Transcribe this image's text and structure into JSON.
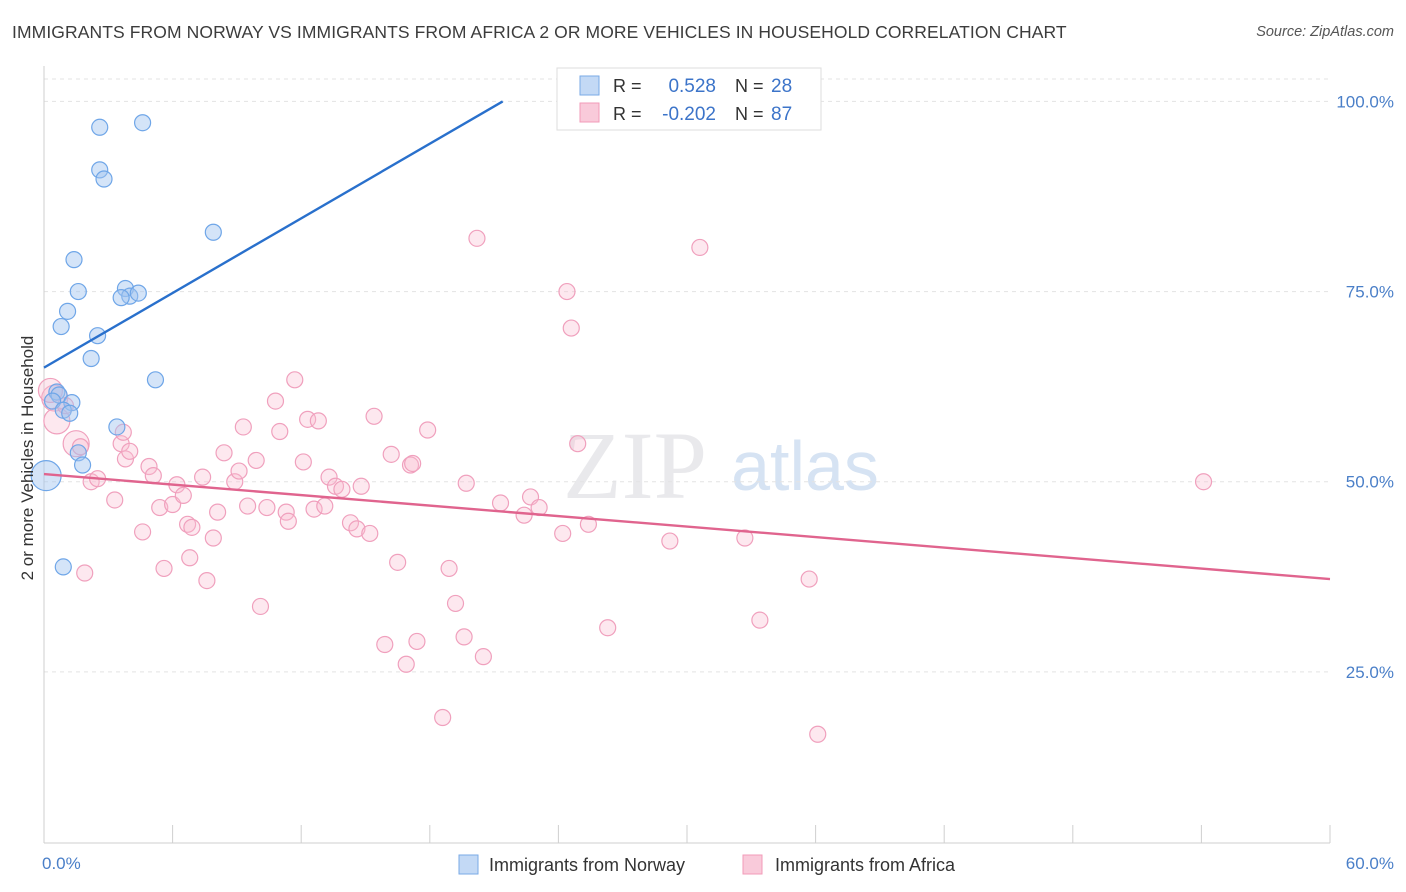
{
  "title": "IMMIGRANTS FROM NORWAY VS IMMIGRANTS FROM AFRICA 2 OR MORE VEHICLES IN HOUSEHOLD CORRELATION CHART",
  "source": "Source: ZipAtlas.com",
  "watermark": {
    "zip": "ZIP",
    "atlas": "atlas"
  },
  "colors": {
    "norway": "#6fa6e8",
    "norway_line": "#2970cc",
    "africa": "#f29bb8",
    "africa_line": "#e0648e",
    "axis_label": "#4a7fc8",
    "grid": "#dddddd"
  },
  "stats": [
    {
      "r_label": "R =",
      "r_value": "0.528",
      "n_label": "N =",
      "n_value": "28",
      "series": "norway"
    },
    {
      "r_label": "R =",
      "r_value": "-0.202",
      "n_label": "N =",
      "n_value": "87",
      "series": "africa"
    }
  ],
  "chart_data": {
    "type": "scatter",
    "title": "IMMIGRANTS FROM NORWAY VS IMMIGRANTS FROM AFRICA 2 OR MORE VEHICLES IN HOUSEHOLD CORRELATION CHART",
    "xlabel": "",
    "ylabel": "2 or more Vehicles in Household",
    "xlim": [
      0,
      60
    ],
    "ylim": [
      2.5,
      104
    ],
    "x_tick_labels": [
      "0.0%",
      "60.0%"
    ],
    "y_ticks": [
      25,
      50,
      75,
      100
    ],
    "y_tick_labels": [
      "25.0%",
      "50.0%",
      "75.0%",
      "100.0%"
    ],
    "grid": true,
    "legend_position": "bottom",
    "series": [
      {
        "name": "Immigrants from Norway",
        "color": "#6fa6e8",
        "trend": {
          "x": [
            0,
            21.4
          ],
          "y": [
            65,
            100
          ]
        },
        "points": [
          [
            0.1,
            50.8
          ],
          [
            0.9,
            38.8
          ],
          [
            2.6,
            96.6
          ],
          [
            2.6,
            91.0
          ],
          [
            2.8,
            89.8
          ],
          [
            4.6,
            97.2
          ],
          [
            7.9,
            82.8
          ],
          [
            1.4,
            79.2
          ],
          [
            1.6,
            75.0
          ],
          [
            3.8,
            75.4
          ],
          [
            4.0,
            74.4
          ],
          [
            3.6,
            74.2
          ],
          [
            4.4,
            74.8
          ],
          [
            1.1,
            72.4
          ],
          [
            0.8,
            70.4
          ],
          [
            2.5,
            69.2
          ],
          [
            2.2,
            66.2
          ],
          [
            5.2,
            63.4
          ],
          [
            0.6,
            61.8
          ],
          [
            0.7,
            61.4
          ],
          [
            0.4,
            60.6
          ],
          [
            1.3,
            60.4
          ],
          [
            0.9,
            59.4
          ],
          [
            1.2,
            59.0
          ],
          [
            3.4,
            57.2
          ],
          [
            1.6,
            53.8
          ],
          [
            1.8,
            52.2
          ],
          [
            26.0,
            100.0
          ]
        ]
      },
      {
        "name": "Immigrants from Africa",
        "color": "#f29bb8",
        "trend": {
          "x": [
            0,
            60
          ],
          "y": [
            51.0,
            37.2
          ]
        },
        "points": [
          [
            0.5,
            61.0
          ],
          [
            0.6,
            58.0
          ],
          [
            1.0,
            60.0
          ],
          [
            1.5,
            55.0
          ],
          [
            1.7,
            54.6
          ],
          [
            3.6,
            55.0
          ],
          [
            2.2,
            50.0
          ],
          [
            2.5,
            50.4
          ],
          [
            1.9,
            38.0
          ],
          [
            3.3,
            47.6
          ],
          [
            3.8,
            53.0
          ],
          [
            3.7,
            56.5
          ],
          [
            4.0,
            54.0
          ],
          [
            4.9,
            52.0
          ],
          [
            5.1,
            50.8
          ],
          [
            5.4,
            46.6
          ],
          [
            4.6,
            43.4
          ],
          [
            5.6,
            38.6
          ],
          [
            6.0,
            47.0
          ],
          [
            6.2,
            49.6
          ],
          [
            6.5,
            48.2
          ],
          [
            6.7,
            44.4
          ],
          [
            6.9,
            44.0
          ],
          [
            7.4,
            50.6
          ],
          [
            7.6,
            37.0
          ],
          [
            7.9,
            42.6
          ],
          [
            8.1,
            46.0
          ],
          [
            8.4,
            53.8
          ],
          [
            8.9,
            50.0
          ],
          [
            9.1,
            51.4
          ],
          [
            9.3,
            57.2
          ],
          [
            9.5,
            46.8
          ],
          [
            9.9,
            52.8
          ],
          [
            10.1,
            33.6
          ],
          [
            10.4,
            46.6
          ],
          [
            10.8,
            60.6
          ],
          [
            11.0,
            56.6
          ],
          [
            11.3,
            46.0
          ],
          [
            11.4,
            44.8
          ],
          [
            11.7,
            63.4
          ],
          [
            12.1,
            52.6
          ],
          [
            12.3,
            58.2
          ],
          [
            12.6,
            46.4
          ],
          [
            12.8,
            58.0
          ],
          [
            13.3,
            50.6
          ],
          [
            13.6,
            49.4
          ],
          [
            13.9,
            49.0
          ],
          [
            14.3,
            44.6
          ],
          [
            14.6,
            43.8
          ],
          [
            14.8,
            49.4
          ],
          [
            15.2,
            43.2
          ],
          [
            15.4,
            58.6
          ],
          [
            15.9,
            28.6
          ],
          [
            16.2,
            53.6
          ],
          [
            16.5,
            39.4
          ],
          [
            16.9,
            26.0
          ],
          [
            17.1,
            52.2
          ],
          [
            17.2,
            52.4
          ],
          [
            17.4,
            29.0
          ],
          [
            17.9,
            56.8
          ],
          [
            18.6,
            19.0
          ],
          [
            18.9,
            38.6
          ],
          [
            19.2,
            34.0
          ],
          [
            19.6,
            29.6
          ],
          [
            19.7,
            49.8
          ],
          [
            20.2,
            82.0
          ],
          [
            20.5,
            27.0
          ],
          [
            21.3,
            47.2
          ],
          [
            22.4,
            45.6
          ],
          [
            22.7,
            48.0
          ],
          [
            23.1,
            46.6
          ],
          [
            24.2,
            43.2
          ],
          [
            24.4,
            75.0
          ],
          [
            24.6,
            70.2
          ],
          [
            25.4,
            44.4
          ],
          [
            26.3,
            30.8
          ],
          [
            29.2,
            42.2
          ],
          [
            30.6,
            80.8
          ],
          [
            32.7,
            42.6
          ],
          [
            33.4,
            31.8
          ],
          [
            35.7,
            37.2
          ],
          [
            36.1,
            16.8
          ],
          [
            54.1,
            50.0
          ],
          [
            24.9,
            55.0
          ],
          [
            13.1,
            46.8
          ],
          [
            6.8,
            40.0
          ],
          [
            0.3,
            62.0
          ]
        ]
      }
    ]
  }
}
